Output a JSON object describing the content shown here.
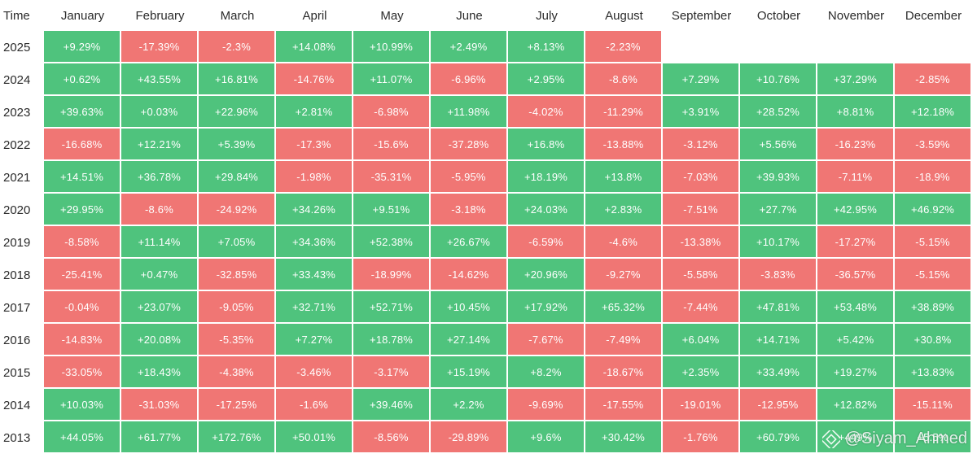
{
  "chart_data": {
    "type": "heatmap",
    "corner_label": "Time",
    "columns": [
      "January",
      "February",
      "March",
      "April",
      "May",
      "June",
      "July",
      "August",
      "September",
      "October",
      "November",
      "December"
    ],
    "rows": [
      {
        "year": "2025",
        "values": [
          "+9.29%",
          "-17.39%",
          "-2.3%",
          "+14.08%",
          "+10.99%",
          "+2.49%",
          "+8.13%",
          "-2.23%",
          null,
          null,
          null,
          null
        ]
      },
      {
        "year": "2024",
        "values": [
          "+0.62%",
          "+43.55%",
          "+16.81%",
          "-14.76%",
          "+11.07%",
          "-6.96%",
          "+2.95%",
          "-8.6%",
          "+7.29%",
          "+10.76%",
          "+37.29%",
          "-2.85%"
        ]
      },
      {
        "year": "2023",
        "values": [
          "+39.63%",
          "+0.03%",
          "+22.96%",
          "+2.81%",
          "-6.98%",
          "+11.98%",
          "-4.02%",
          "-11.29%",
          "+3.91%",
          "+28.52%",
          "+8.81%",
          "+12.18%"
        ]
      },
      {
        "year": "2022",
        "values": [
          "-16.68%",
          "+12.21%",
          "+5.39%",
          "-17.3%",
          "-15.6%",
          "-37.28%",
          "+16.8%",
          "-13.88%",
          "-3.12%",
          "+5.56%",
          "-16.23%",
          "-3.59%"
        ]
      },
      {
        "year": "2021",
        "values": [
          "+14.51%",
          "+36.78%",
          "+29.84%",
          "-1.98%",
          "-35.31%",
          "-5.95%",
          "+18.19%",
          "+13.8%",
          "-7.03%",
          "+39.93%",
          "-7.11%",
          "-18.9%"
        ]
      },
      {
        "year": "2020",
        "values": [
          "+29.95%",
          "-8.6%",
          "-24.92%",
          "+34.26%",
          "+9.51%",
          "-3.18%",
          "+24.03%",
          "+2.83%",
          "-7.51%",
          "+27.7%",
          "+42.95%",
          "+46.92%"
        ]
      },
      {
        "year": "2019",
        "values": [
          "-8.58%",
          "+11.14%",
          "+7.05%",
          "+34.36%",
          "+52.38%",
          "+26.67%",
          "-6.59%",
          "-4.6%",
          "-13.38%",
          "+10.17%",
          "-17.27%",
          "-5.15%"
        ]
      },
      {
        "year": "2018",
        "values": [
          "-25.41%",
          "+0.47%",
          "-32.85%",
          "+33.43%",
          "-18.99%",
          "-14.62%",
          "+20.96%",
          "-9.27%",
          "-5.58%",
          "-3.83%",
          "-36.57%",
          "-5.15%"
        ]
      },
      {
        "year": "2017",
        "values": [
          "-0.04%",
          "+23.07%",
          "-9.05%",
          "+32.71%",
          "+52.71%",
          "+10.45%",
          "+17.92%",
          "+65.32%",
          "-7.44%",
          "+47.81%",
          "+53.48%",
          "+38.89%"
        ]
      },
      {
        "year": "2016",
        "values": [
          "-14.83%",
          "+20.08%",
          "-5.35%",
          "+7.27%",
          "+18.78%",
          "+27.14%",
          "-7.67%",
          "-7.49%",
          "+6.04%",
          "+14.71%",
          "+5.42%",
          "+30.8%"
        ]
      },
      {
        "year": "2015",
        "values": [
          "-33.05%",
          "+18.43%",
          "-4.38%",
          "-3.46%",
          "-3.17%",
          "+15.19%",
          "+8.2%",
          "-18.67%",
          "+2.35%",
          "+33.49%",
          "+19.27%",
          "+13.83%"
        ]
      },
      {
        "year": "2014",
        "values": [
          "+10.03%",
          "-31.03%",
          "-17.25%",
          "-1.6%",
          "+39.46%",
          "+2.2%",
          "-9.69%",
          "-17.55%",
          "-19.01%",
          "-12.95%",
          "+12.82%",
          "-15.11%"
        ]
      },
      {
        "year": "2013",
        "values": [
          "+44.05%",
          "+61.77%",
          "+172.76%",
          "+50.01%",
          "-8.56%",
          "-29.89%",
          "+9.6%",
          "+30.42%",
          "-1.76%",
          "+60.79%",
          "+449%",
          "+5.5%"
        ]
      }
    ],
    "colors": {
      "positive": "#4fc37d",
      "negative": "#f07674",
      "cell_text": "#ffffff"
    }
  },
  "watermark": {
    "text": "@Siyam_Ahmed",
    "icon": "binance-diamond-icon"
  }
}
